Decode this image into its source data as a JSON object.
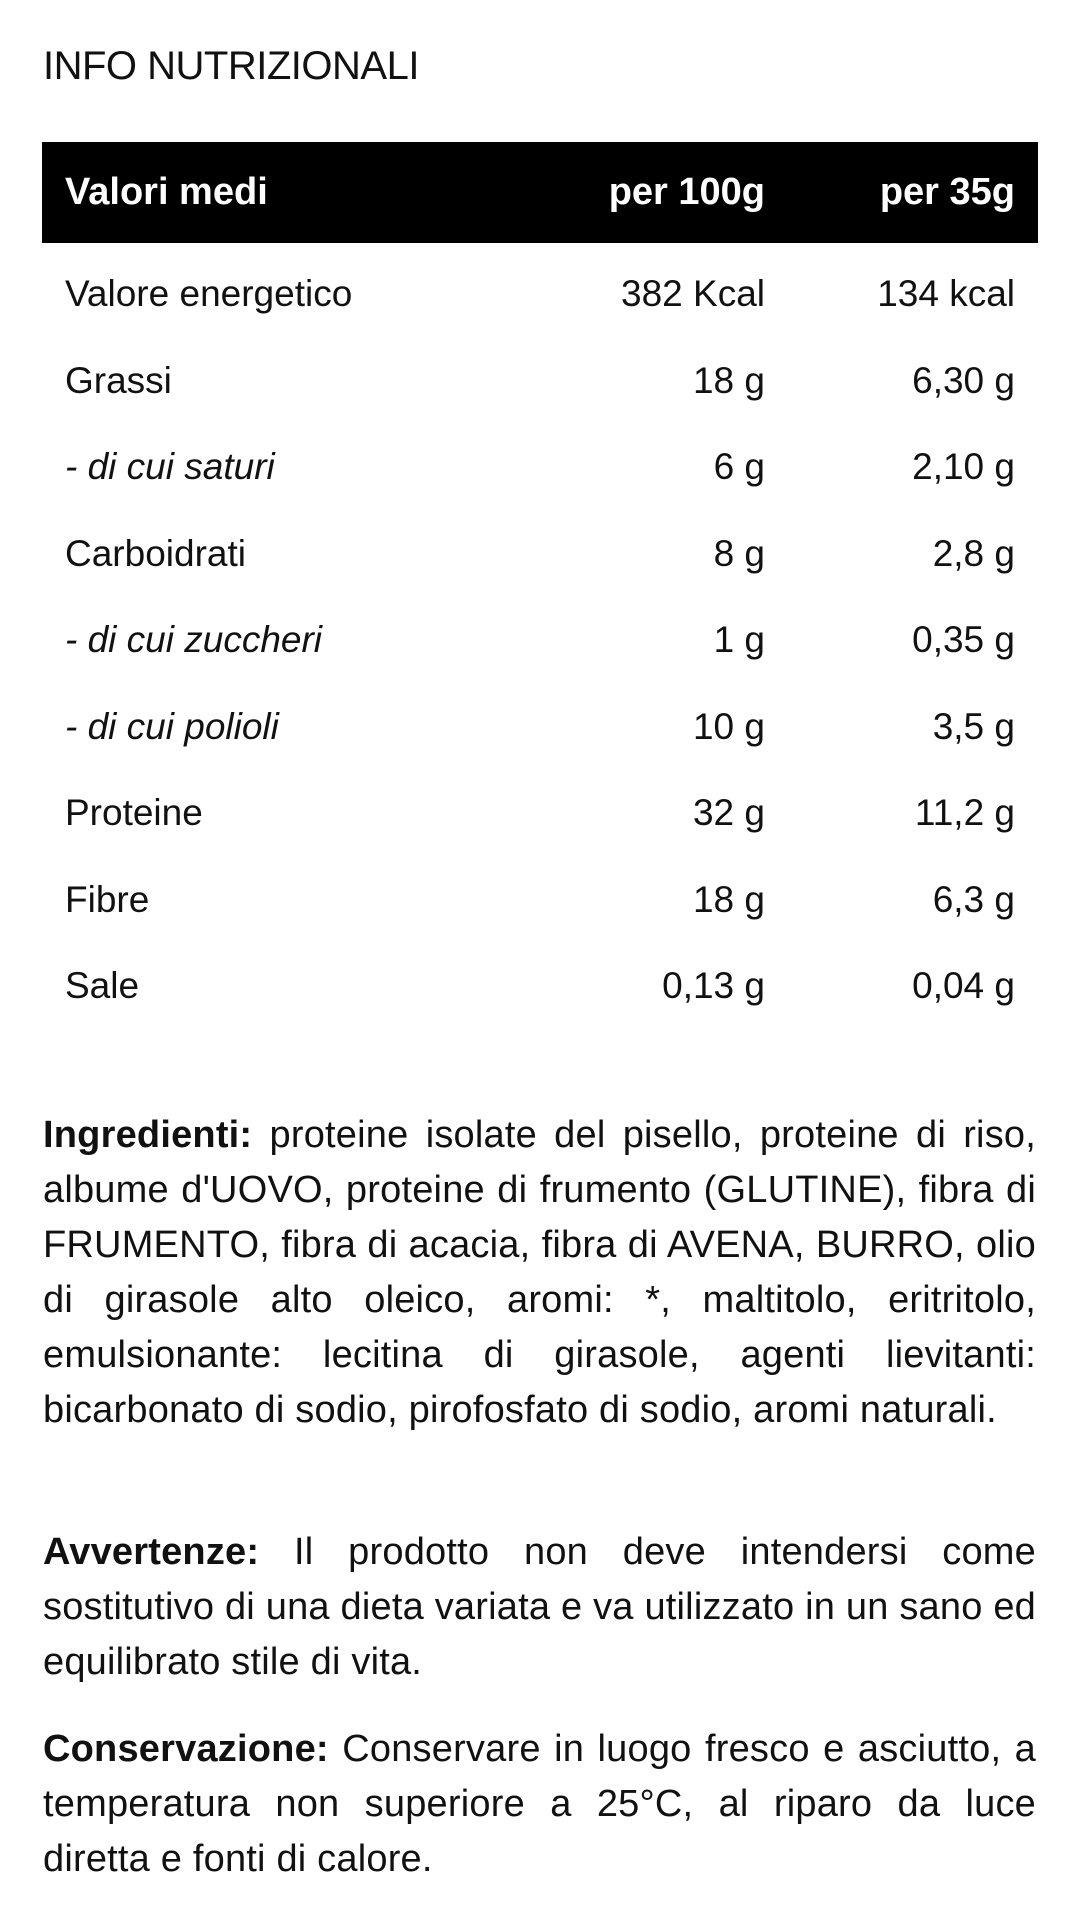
{
  "title": "INFO NUTRIZIONALI",
  "table": {
    "headers": [
      "Valori medi",
      "per 100g",
      "per 35g"
    ],
    "rows": [
      {
        "label": "Valore energetico",
        "per100": "382 Kcal",
        "per35": "134 kcal",
        "italic": false
      },
      {
        "label": "Grassi",
        "per100": "18 g",
        "per35": "6,30 g",
        "italic": false
      },
      {
        "label": "- di cui saturi",
        "per100": "6 g",
        "per35": "2,10 g",
        "italic": true
      },
      {
        "label": "Carboidrati",
        "per100": "8 g",
        "per35": "2,8 g",
        "italic": false
      },
      {
        "label": "- di cui zuccheri",
        "per100": "1 g",
        "per35": "0,35 g",
        "italic": true
      },
      {
        "label": "- di cui polioli",
        "per100": "10 g",
        "per35": "3,5 g",
        "italic": true
      },
      {
        "label": "Proteine",
        "per100": "32 g",
        "per35": "11,2 g",
        "italic": false
      },
      {
        "label": "Fibre",
        "per100": "18 g",
        "per35": "6,3 g",
        "italic": false
      },
      {
        "label": "Sale",
        "per100": "0,13 g",
        "per35": "0,04 g",
        "italic": false
      }
    ]
  },
  "ingredients": {
    "label": "Ingredienti:",
    "text": "proteine isolate del pisello, proteine di riso, albume d'UOVO, proteine di frumento (GLUTINE), fibra di FRUMENTO, fibra di acacia, fibra di AVENA, BURRO, olio di girasole alto oleico, aromi: *, maltitolo, eritritolo, emulsionante: lecitina di girasole, agenti lievitanti: bicarbonato di sodio, pirofosfato di sodio, aromi naturali."
  },
  "warnings": {
    "label": "Avvertenze:",
    "text": "Il prodotto non deve intendersi come sostitutivo di una dieta variata e va utilizzato in un sano ed equilibrato stile di vita."
  },
  "storage": {
    "label": "Conservazione:",
    "text": "Conservare in luogo fresco e asciutto, a temperatura non superiore a 25°C, al riparo da luce diretta e fonti di calore."
  }
}
